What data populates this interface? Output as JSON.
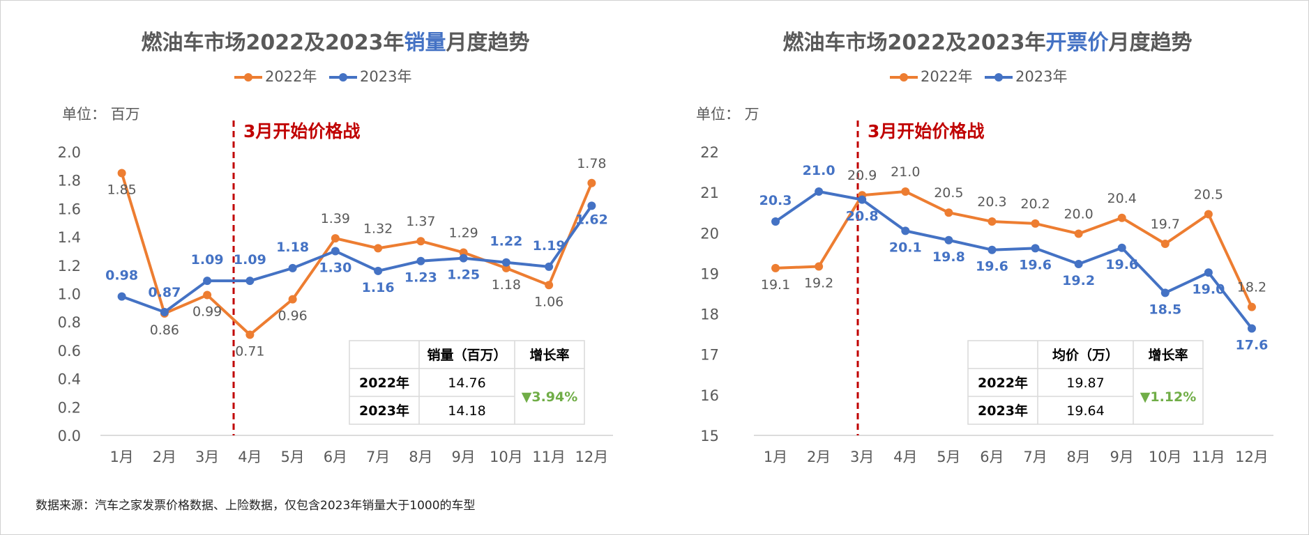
{
  "source_note": "数据来源：汽车之家发票价格数据、上险数据，仅包含2023年销量大于1000的车型",
  "colors": {
    "y2022": "#ED7D31",
    "y2023": "#4472C4",
    "war_line": "#C00000",
    "down": "#70AD47",
    "title": "#595959",
    "axis_text": "#595959"
  },
  "chart_data": [
    {
      "type": "line",
      "title_parts": [
        "燃油车市场2022及2023年",
        "销量",
        "月度趋势"
      ],
      "unit_label": "单位：  百万",
      "annotation": "3月开始价格战",
      "legend": [
        "2022年",
        "2023年"
      ],
      "categories": [
        "1月",
        "2月",
        "3月",
        "4月",
        "5月",
        "6月",
        "7月",
        "8月",
        "9月",
        "10月",
        "11月",
        "12月"
      ],
      "y_ticks": [
        "0.0",
        "0.2",
        "0.4",
        "0.6",
        "0.8",
        "1.0",
        "1.2",
        "1.4",
        "1.6",
        "1.8",
        "2.0"
      ],
      "ylim": [
        0,
        2.0
      ],
      "series": [
        {
          "name": "2022年",
          "values": [
            1.85,
            0.86,
            0.99,
            0.71,
            0.96,
            1.39,
            1.32,
            1.37,
            1.29,
            1.18,
            1.06,
            1.78
          ],
          "labels": [
            "1.85",
            "0.86",
            "0.99",
            "0.71",
            "0.96",
            "1.39",
            "1.32",
            "1.37",
            "1.29",
            "1.18",
            "1.06",
            "1.78"
          ]
        },
        {
          "name": "2023年",
          "values": [
            0.98,
            0.87,
            1.09,
            1.09,
            1.18,
            1.3,
            1.16,
            1.23,
            1.25,
            1.22,
            1.19,
            1.62
          ],
          "labels": [
            "0.98",
            "0.87",
            "1.09",
            "1.09",
            "1.18",
            "1.30",
            "1.16",
            "1.23",
            "1.25",
            "1.22",
            "1.19",
            "1.62"
          ]
        }
      ],
      "table": {
        "headers": [
          "",
          "销量（百万）",
          "增长率"
        ],
        "rows": [
          [
            "2022年",
            "14.76"
          ],
          [
            "2023年",
            "14.18"
          ]
        ],
        "growth": "▼3.94%"
      }
    },
    {
      "type": "line",
      "title_parts": [
        "燃油车市场2022及2023年",
        "开票价",
        "月度趋势"
      ],
      "unit_label": "单位：  万",
      "annotation": "3月开始价格战",
      "legend": [
        "2022年",
        "2023年"
      ],
      "categories": [
        "1月",
        "2月",
        "3月",
        "4月",
        "5月",
        "6月",
        "7月",
        "8月",
        "9月",
        "10月",
        "11月",
        "12月"
      ],
      "y_ticks": [
        "15",
        "16",
        "17",
        "18",
        "19",
        "20",
        "21",
        "22"
      ],
      "ylim": [
        15,
        22
      ],
      "series": [
        {
          "name": "2022年",
          "values": [
            19.13,
            19.17,
            20.93,
            21.02,
            20.5,
            20.28,
            20.23,
            19.98,
            20.37,
            19.73,
            20.46,
            18.17
          ],
          "labels": [
            "19.1",
            "19.2",
            "20.9",
            "21.0",
            "20.5",
            "20.3",
            "20.2",
            "20.0",
            "20.4",
            "19.7",
            "20.5",
            "18.2"
          ]
        },
        {
          "name": "2023年",
          "values": [
            20.28,
            21.02,
            20.82,
            20.05,
            19.82,
            19.58,
            19.62,
            19.23,
            19.63,
            18.52,
            19.02,
            17.64
          ],
          "labels": [
            "20.3",
            "21.0",
            "20.8",
            "20.1",
            "19.8",
            "19.6",
            "19.6",
            "19.2",
            "19.6",
            "18.5",
            "19.0",
            "17.6"
          ]
        }
      ],
      "table": {
        "headers": [
          "",
          "均价（万）",
          "增长率"
        ],
        "rows": [
          [
            "2022年",
            "19.87"
          ],
          [
            "2023年",
            "19.64"
          ]
        ],
        "growth": "▼1.12%"
      }
    }
  ]
}
